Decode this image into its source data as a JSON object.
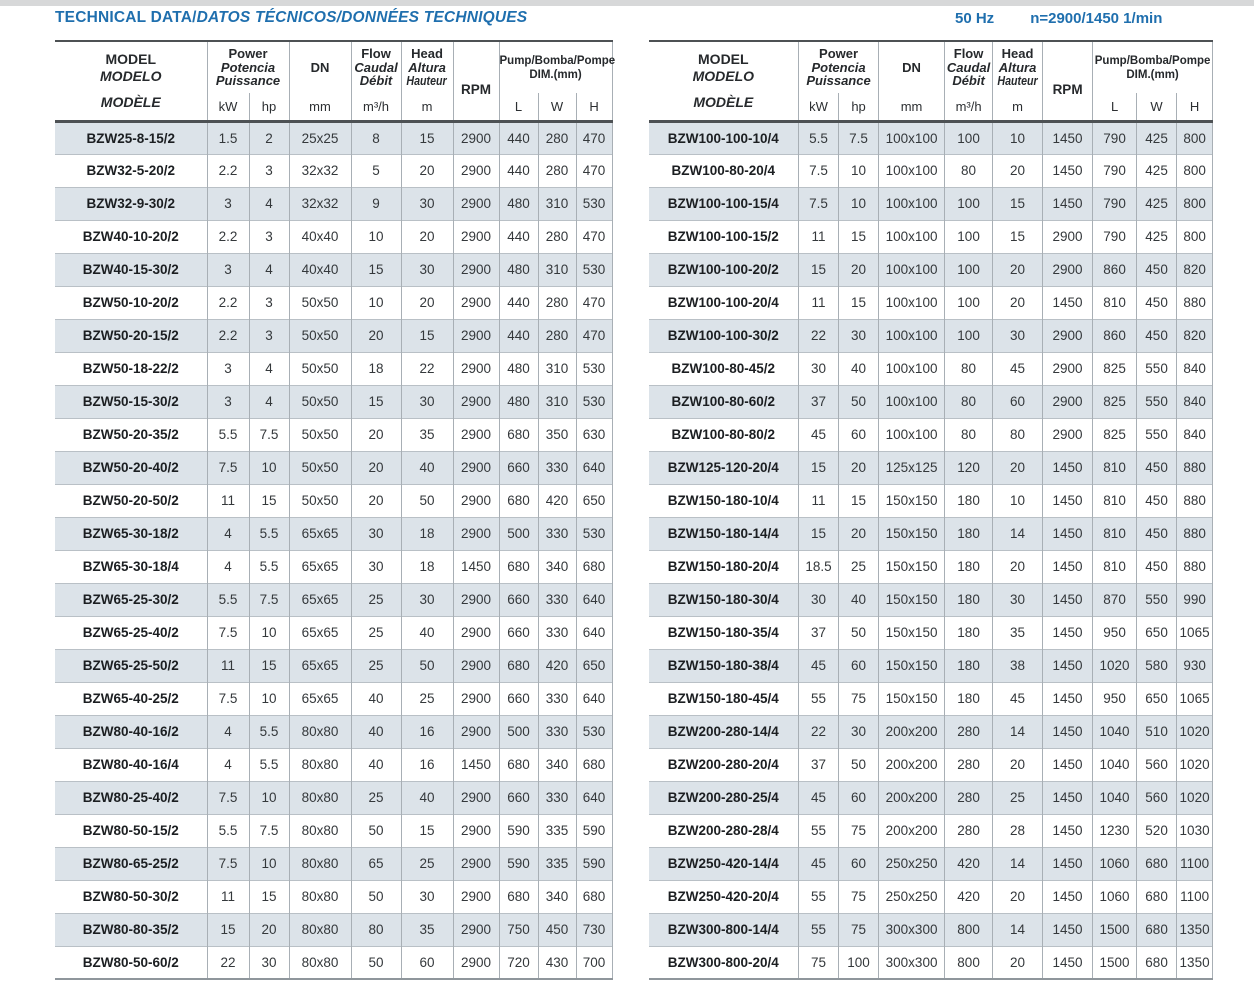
{
  "page": {
    "title_main": "TECHNICAL DATA/",
    "title_italic": "DATOS TÉCNICOS/DONNÉES TECHNIQUES",
    "freq": "50 Hz",
    "speed": "n=2900/1450 1/min"
  },
  "header": {
    "model_l1": "MODEL",
    "model_l2": "MODELO",
    "model_l3": "MODÈLE",
    "power_l1": "Power",
    "power_l2": "Potencia",
    "power_l3": "Puissance",
    "dn": "DN",
    "flow_l1": "Flow",
    "flow_l2": "Caudal",
    "flow_l3": "Débit",
    "head_l1": "Head",
    "head_l2": "Altura",
    "head_l3": "Hauteur",
    "rpm": "RPM",
    "pump_l1a": "Pump/",
    "pump_l1b": "Bomba/Pompe",
    "pump_l2": "DIM.(mm)",
    "unit_kw": "kW",
    "unit_hp": "hp",
    "unit_mm": "mm",
    "unit_m3h": "m³/h",
    "unit_m": "m",
    "unit_l": "L",
    "unit_w": "W",
    "unit_h": "H"
  },
  "tables": [
    {
      "rows": [
        [
          "BZW25-8-15/2",
          "1.5",
          "2",
          "25x25",
          "8",
          "15",
          "2900",
          "440",
          "280",
          "470"
        ],
        [
          "BZW32-5-20/2",
          "2.2",
          "3",
          "32x32",
          "5",
          "20",
          "2900",
          "440",
          "280",
          "470"
        ],
        [
          "BZW32-9-30/2",
          "3",
          "4",
          "32x32",
          "9",
          "30",
          "2900",
          "480",
          "310",
          "530"
        ],
        [
          "BZW40-10-20/2",
          "2.2",
          "3",
          "40x40",
          "10",
          "20",
          "2900",
          "440",
          "280",
          "470"
        ],
        [
          "BZW40-15-30/2",
          "3",
          "4",
          "40x40",
          "15",
          "30",
          "2900",
          "480",
          "310",
          "530"
        ],
        [
          "BZW50-10-20/2",
          "2.2",
          "3",
          "50x50",
          "10",
          "20",
          "2900",
          "440",
          "280",
          "470"
        ],
        [
          "BZW50-20-15/2",
          "2.2",
          "3",
          "50x50",
          "20",
          "15",
          "2900",
          "440",
          "280",
          "470"
        ],
        [
          "BZW50-18-22/2",
          "3",
          "4",
          "50x50",
          "18",
          "22",
          "2900",
          "480",
          "310",
          "530"
        ],
        [
          "BZW50-15-30/2",
          "3",
          "4",
          "50x50",
          "15",
          "30",
          "2900",
          "480",
          "310",
          "530"
        ],
        [
          "BZW50-20-35/2",
          "5.5",
          "7.5",
          "50x50",
          "20",
          "35",
          "2900",
          "680",
          "350",
          "630"
        ],
        [
          "BZW50-20-40/2",
          "7.5",
          "10",
          "50x50",
          "20",
          "40",
          "2900",
          "660",
          "330",
          "640"
        ],
        [
          "BZW50-20-50/2",
          "11",
          "15",
          "50x50",
          "20",
          "50",
          "2900",
          "680",
          "420",
          "650"
        ],
        [
          "BZW65-30-18/2",
          "4",
          "5.5",
          "65x65",
          "30",
          "18",
          "2900",
          "500",
          "330",
          "530"
        ],
        [
          "BZW65-30-18/4",
          "4",
          "5.5",
          "65x65",
          "30",
          "18",
          "1450",
          "680",
          "340",
          "680"
        ],
        [
          "BZW65-25-30/2",
          "5.5",
          "7.5",
          "65x65",
          "25",
          "30",
          "2900",
          "660",
          "330",
          "640"
        ],
        [
          "BZW65-25-40/2",
          "7.5",
          "10",
          "65x65",
          "25",
          "40",
          "2900",
          "660",
          "330",
          "640"
        ],
        [
          "BZW65-25-50/2",
          "11",
          "15",
          "65x65",
          "25",
          "50",
          "2900",
          "680",
          "420",
          "650"
        ],
        [
          "BZW65-40-25/2",
          "7.5",
          "10",
          "65x65",
          "40",
          "25",
          "2900",
          "660",
          "330",
          "640"
        ],
        [
          "BZW80-40-16/2",
          "4",
          "5.5",
          "80x80",
          "40",
          "16",
          "2900",
          "500",
          "330",
          "530"
        ],
        [
          "BZW80-40-16/4",
          "4",
          "5.5",
          "80x80",
          "40",
          "16",
          "1450",
          "680",
          "340",
          "680"
        ],
        [
          "BZW80-25-40/2",
          "7.5",
          "10",
          "80x80",
          "25",
          "40",
          "2900",
          "660",
          "330",
          "640"
        ],
        [
          "BZW80-50-15/2",
          "5.5",
          "7.5",
          "80x80",
          "50",
          "15",
          "2900",
          "590",
          "335",
          "590"
        ],
        [
          "BZW80-65-25/2",
          "7.5",
          "10",
          "80x80",
          "65",
          "25",
          "2900",
          "590",
          "335",
          "590"
        ],
        [
          "BZW80-50-30/2",
          "11",
          "15",
          "80x80",
          "50",
          "30",
          "2900",
          "680",
          "340",
          "680"
        ],
        [
          "BZW80-80-35/2",
          "15",
          "20",
          "80x80",
          "80",
          "35",
          "2900",
          "750",
          "450",
          "730"
        ],
        [
          "BZW80-50-60/2",
          "22",
          "30",
          "80x80",
          "50",
          "60",
          "2900",
          "720",
          "430",
          "700"
        ]
      ]
    },
    {
      "rows": [
        [
          "BZW100-100-10/4",
          "5.5",
          "7.5",
          "100x100",
          "100",
          "10",
          "1450",
          "790",
          "425",
          "800"
        ],
        [
          "BZW100-80-20/4",
          "7.5",
          "10",
          "100x100",
          "80",
          "20",
          "1450",
          "790",
          "425",
          "800"
        ],
        [
          "BZW100-100-15/4",
          "7.5",
          "10",
          "100x100",
          "100",
          "15",
          "1450",
          "790",
          "425",
          "800"
        ],
        [
          "BZW100-100-15/2",
          "11",
          "15",
          "100x100",
          "100",
          "15",
          "2900",
          "790",
          "425",
          "800"
        ],
        [
          "BZW100-100-20/2",
          "15",
          "20",
          "100x100",
          "100",
          "20",
          "2900",
          "860",
          "450",
          "820"
        ],
        [
          "BZW100-100-20/4",
          "11",
          "15",
          "100x100",
          "100",
          "20",
          "1450",
          "810",
          "450",
          "880"
        ],
        [
          "BZW100-100-30/2",
          "22",
          "30",
          "100x100",
          "100",
          "30",
          "2900",
          "860",
          "450",
          "820"
        ],
        [
          "BZW100-80-45/2",
          "30",
          "40",
          "100x100",
          "80",
          "45",
          "2900",
          "825",
          "550",
          "840"
        ],
        [
          "BZW100-80-60/2",
          "37",
          "50",
          "100x100",
          "80",
          "60",
          "2900",
          "825",
          "550",
          "840"
        ],
        [
          "BZW100-80-80/2",
          "45",
          "60",
          "100x100",
          "80",
          "80",
          "2900",
          "825",
          "550",
          "840"
        ],
        [
          "BZW125-120-20/4",
          "15",
          "20",
          "125x125",
          "120",
          "20",
          "1450",
          "810",
          "450",
          "880"
        ],
        [
          "BZW150-180-10/4",
          "11",
          "15",
          "150x150",
          "180",
          "10",
          "1450",
          "810",
          "450",
          "880"
        ],
        [
          "BZW150-180-14/4",
          "15",
          "20",
          "150x150",
          "180",
          "14",
          "1450",
          "810",
          "450",
          "880"
        ],
        [
          "BZW150-180-20/4",
          "18.5",
          "25",
          "150x150",
          "180",
          "20",
          "1450",
          "810",
          "450",
          "880"
        ],
        [
          "BZW150-180-30/4",
          "30",
          "40",
          "150x150",
          "180",
          "30",
          "1450",
          "870",
          "550",
          "990"
        ],
        [
          "BZW150-180-35/4",
          "37",
          "50",
          "150x150",
          "180",
          "35",
          "1450",
          "950",
          "650",
          "1065"
        ],
        [
          "BZW150-180-38/4",
          "45",
          "60",
          "150x150",
          "180",
          "38",
          "1450",
          "1020",
          "580",
          "930"
        ],
        [
          "BZW150-180-45/4",
          "55",
          "75",
          "150x150",
          "180",
          "45",
          "1450",
          "950",
          "650",
          "1065"
        ],
        [
          "BZW200-280-14/4",
          "22",
          "30",
          "200x200",
          "280",
          "14",
          "1450",
          "1040",
          "510",
          "1020"
        ],
        [
          "BZW200-280-20/4",
          "37",
          "50",
          "200x200",
          "280",
          "20",
          "1450",
          "1040",
          "560",
          "1020"
        ],
        [
          "BZW200-280-25/4",
          "45",
          "60",
          "200x200",
          "280",
          "25",
          "1450",
          "1040",
          "560",
          "1020"
        ],
        [
          "BZW200-280-28/4",
          "55",
          "75",
          "200x200",
          "280",
          "28",
          "1450",
          "1230",
          "520",
          "1030"
        ],
        [
          "BZW250-420-14/4",
          "45",
          "60",
          "250x250",
          "420",
          "14",
          "1450",
          "1060",
          "680",
          "1100"
        ],
        [
          "BZW250-420-20/4",
          "55",
          "75",
          "250x250",
          "420",
          "20",
          "1450",
          "1060",
          "680",
          "1100"
        ],
        [
          "BZW300-800-14/4",
          "55",
          "75",
          "300x300",
          "800",
          "14",
          "1450",
          "1500",
          "680",
          "1350"
        ],
        [
          "BZW300-800-20/4",
          "75",
          "100",
          "300x300",
          "800",
          "20",
          "1450",
          "1500",
          "680",
          "1350"
        ]
      ]
    }
  ]
}
